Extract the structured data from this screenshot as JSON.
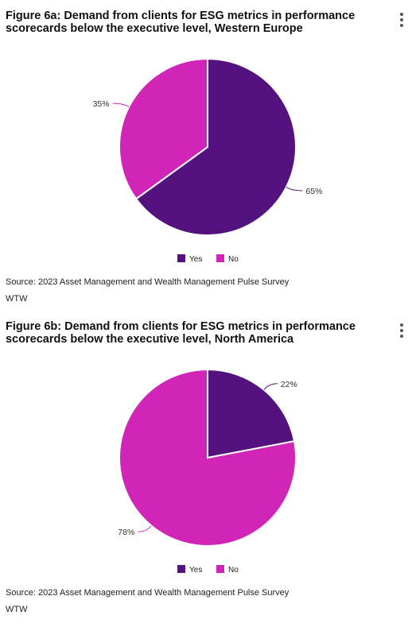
{
  "colors": {
    "yes": "#53127d",
    "no": "#d125b8"
  },
  "figures": [
    {
      "title": "Figure 6a: Demand from clients for ESG metrics in performance scorecards below the executive level, Western Europe",
      "source": "Source: 2023 Asset Management and Wealth Management Pulse Survey",
      "credit": "WTW",
      "legend": [
        "Yes",
        "No"
      ]
    },
    {
      "title": "Figure 6b: Demand from clients for ESG metrics in performance scorecards below the executive level, North America",
      "source": "Source: 2023 Asset Management and Wealth Management Pulse Survey",
      "credit": "WTW",
      "legend": [
        "Yes",
        "No"
      ]
    }
  ],
  "chart_data": [
    {
      "type": "pie",
      "title": "Figure 6a: Demand from clients for ESG metrics in performance scorecards below the executive level, Western Europe",
      "categories": [
        "Yes",
        "No"
      ],
      "values": [
        65,
        35
      ],
      "labels": [
        "65%",
        "35%"
      ],
      "colors": [
        "#53127d",
        "#d125b8"
      ],
      "legend_position": "bottom-center"
    },
    {
      "type": "pie",
      "title": "Figure 6b: Demand from clients for ESG metrics in performance scorecards below the executive level, North America",
      "categories": [
        "Yes",
        "No"
      ],
      "values": [
        22,
        78
      ],
      "labels": [
        "22%",
        "78%"
      ],
      "colors": [
        "#53127d",
        "#d125b8"
      ],
      "legend_position": "bottom-center"
    }
  ]
}
